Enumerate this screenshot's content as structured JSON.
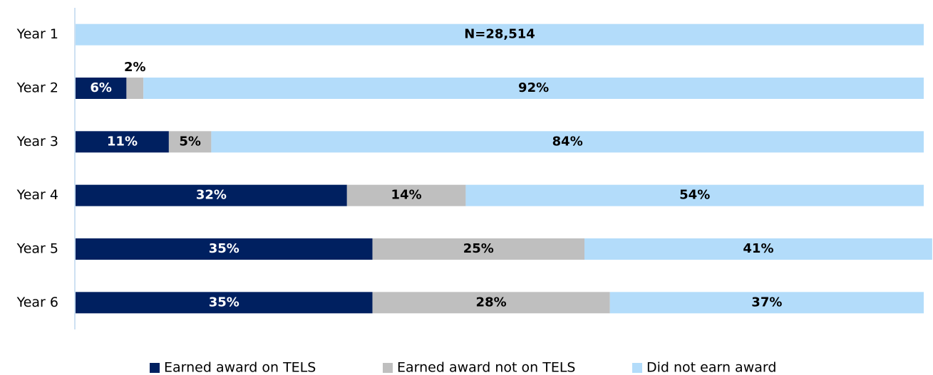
{
  "chart_data": {
    "type": "bar",
    "orientation": "horizontal",
    "stacked": true,
    "categories": [
      "Year 1",
      "Year 2",
      "Year 3",
      "Year 4",
      "Year 5",
      "Year 6"
    ],
    "xlim": [
      0,
      100
    ],
    "annotation": "N=28,514",
    "series": [
      {
        "name": "Earned award on TELS",
        "color": "#002060",
        "values": [
          0,
          6,
          11,
          32,
          35,
          35
        ],
        "value_labels": [
          null,
          "6%",
          "11%",
          "32%",
          "35%",
          "35%"
        ]
      },
      {
        "name": "Earned award not on TELS",
        "color": "#bfbfbf",
        "values": [
          0,
          2,
          5,
          14,
          25,
          28
        ],
        "value_labels": [
          null,
          "2%",
          "5%",
          "14%",
          "25%",
          "28%"
        ]
      },
      {
        "name": "Did not earn award",
        "color": "#b3dcfa",
        "values": [
          100,
          92,
          84,
          54,
          41,
          37
        ],
        "value_labels": [
          null,
          "92%",
          "84%",
          "54%",
          "41%",
          "37%"
        ]
      }
    ],
    "legend": "bottom"
  }
}
